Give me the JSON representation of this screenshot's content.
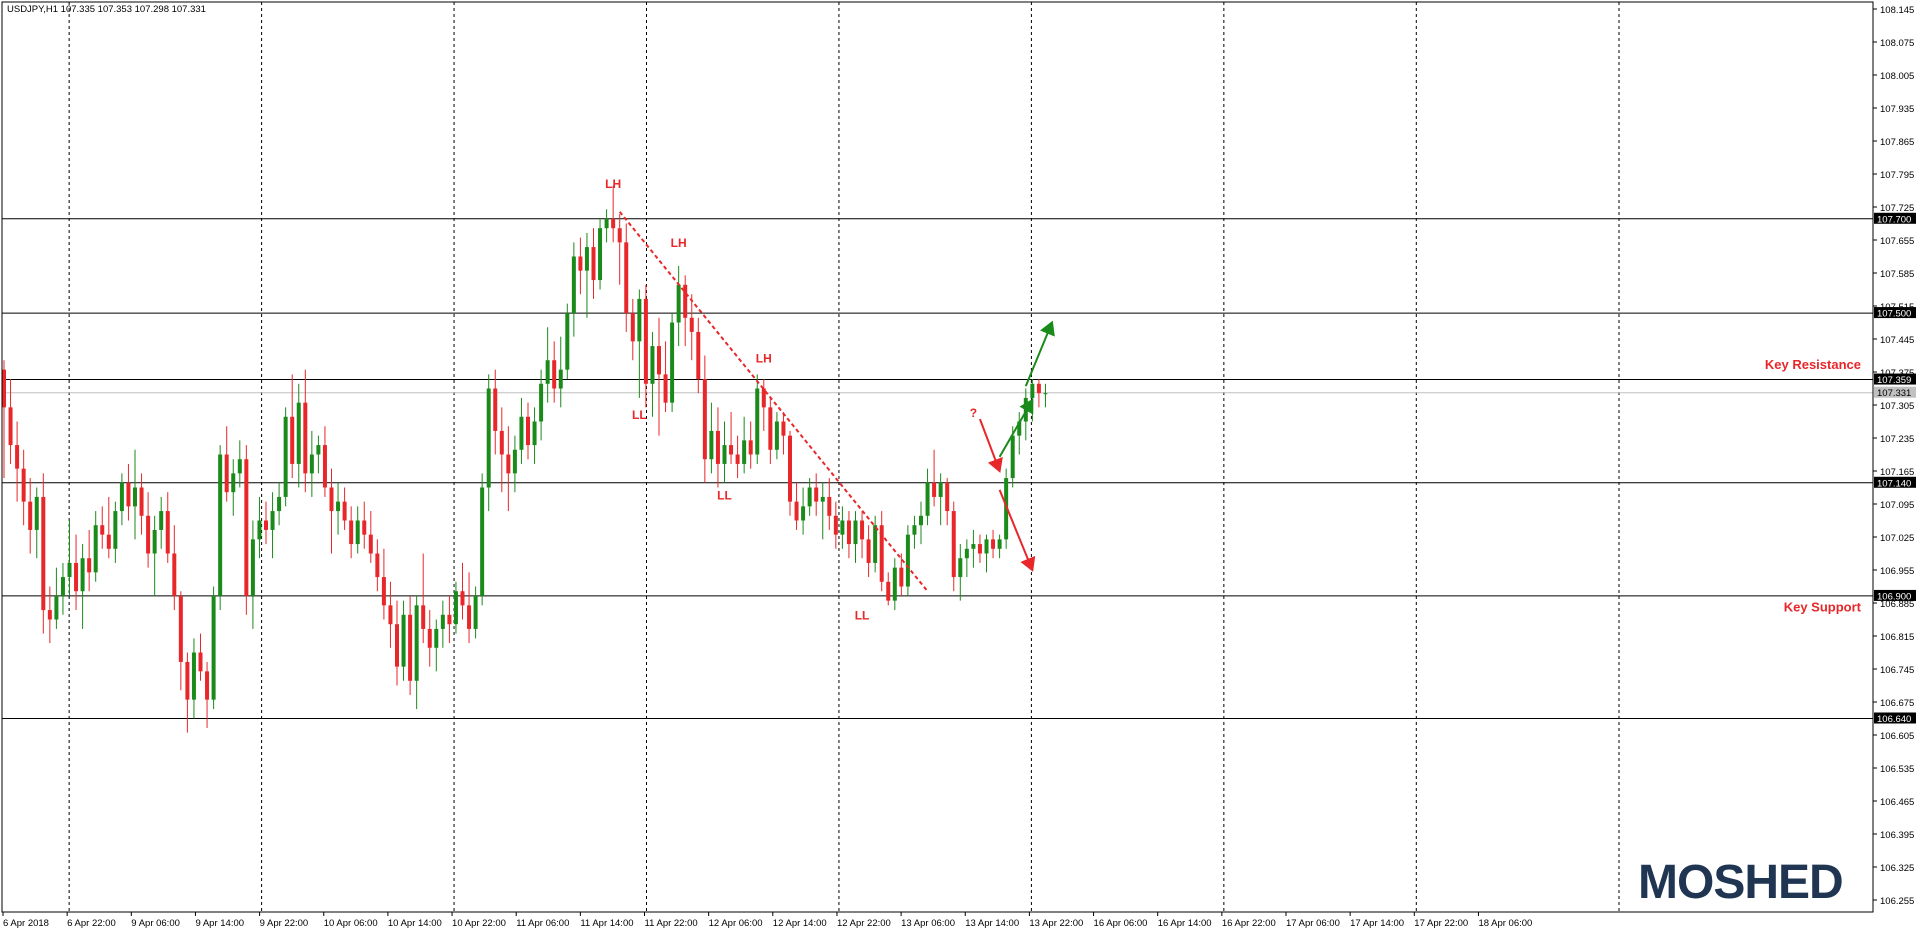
{
  "chart_data": {
    "type": "candlestick",
    "symbol_header": "USDJPY,H1  107.335 107.353 107.298 107.331",
    "ylim": [
      106.255,
      108.145
    ],
    "y_ticks": [
      "108.145",
      "108.075",
      "108.005",
      "107.935",
      "107.865",
      "107.795",
      "107.725",
      "107.655",
      "107.585",
      "107.515",
      "107.445",
      "107.375",
      "107.305",
      "107.235",
      "107.165",
      "107.095",
      "107.025",
      "106.955",
      "106.885",
      "106.815",
      "106.745",
      "106.675",
      "106.605",
      "106.535",
      "106.465",
      "106.395",
      "106.325",
      "106.255"
    ],
    "x_ticks": [
      "6 Apr 2018",
      "6 Apr 22:00",
      "9 Apr 06:00",
      "9 Apr 14:00",
      "9 Apr 22:00",
      "10 Apr 06:00",
      "10 Apr 14:00",
      "10 Apr 22:00",
      "11 Apr 06:00",
      "11 Apr 14:00",
      "11 Apr 22:00",
      "12 Apr 06:00",
      "12 Apr 14:00",
      "12 Apr 22:00",
      "13 Apr 06:00",
      "13 Apr 14:00",
      "13 Apr 22:00",
      "16 Apr 06:00",
      "16 Apr 14:00",
      "16 Apr 22:00",
      "17 Apr 06:00",
      "17 Apr 14:00",
      "17 Apr 22:00",
      "18 Apr 06:00"
    ],
    "vertical_grid_after_ticks": [
      1,
      4,
      7,
      10,
      13,
      16,
      19,
      22
    ],
    "bull_color": "#1a8a1a",
    "bear_color": "#e8272a",
    "candles": [
      [
        107.38,
        107.4,
        107.15,
        107.3
      ],
      [
        107.3,
        107.36,
        107.18,
        107.22
      ],
      [
        107.22,
        107.27,
        107.1,
        107.17
      ],
      [
        107.17,
        107.21,
        107.05,
        107.1
      ],
      [
        107.1,
        107.15,
        106.99,
        107.04
      ],
      [
        107.04,
        107.13,
        106.98,
        107.11
      ],
      [
        107.11,
        107.16,
        106.82,
        106.87
      ],
      [
        106.87,
        106.92,
        106.8,
        106.85
      ],
      [
        106.85,
        106.96,
        106.83,
        106.9
      ],
      [
        106.9,
        106.97,
        106.86,
        106.94
      ],
      [
        106.94,
        107.06,
        106.9,
        106.97
      ],
      [
        106.97,
        107.03,
        106.87,
        106.91
      ],
      [
        106.91,
        107.01,
        106.83,
        106.98
      ],
      [
        106.98,
        107.04,
        106.91,
        106.95
      ],
      [
        106.95,
        107.08,
        106.93,
        107.05
      ],
      [
        107.05,
        107.09,
        107.0,
        107.03
      ],
      [
        107.03,
        107.11,
        106.98,
        107.0
      ],
      [
        107.0,
        107.1,
        106.97,
        107.08
      ],
      [
        107.08,
        107.16,
        107.05,
        107.14
      ],
      [
        107.14,
        107.18,
        107.06,
        107.09
      ],
      [
        107.09,
        107.21,
        107.02,
        107.13
      ],
      [
        107.13,
        107.16,
        107.03,
        107.07
      ],
      [
        107.07,
        107.12,
        106.96,
        106.99
      ],
      [
        106.99,
        107.07,
        106.9,
        107.04
      ],
      [
        107.04,
        107.11,
        107.0,
        107.08
      ],
      [
        107.08,
        107.12,
        106.97,
        106.99
      ],
      [
        106.99,
        107.05,
        106.87,
        106.9
      ],
      [
        106.9,
        106.91,
        106.7,
        106.76
      ],
      [
        106.76,
        106.78,
        106.61,
        106.68
      ],
      [
        106.68,
        106.81,
        106.64,
        106.78
      ],
      [
        106.78,
        106.82,
        106.72,
        106.74
      ],
      [
        106.74,
        106.76,
        106.62,
        106.68
      ],
      [
        106.68,
        106.92,
        106.66,
        106.9
      ],
      [
        106.9,
        107.22,
        106.87,
        107.2
      ],
      [
        107.2,
        107.26,
        107.1,
        107.12
      ],
      [
        107.12,
        107.19,
        107.07,
        107.16
      ],
      [
        107.16,
        107.23,
        107.13,
        107.19
      ],
      [
        107.19,
        107.22,
        106.86,
        106.9
      ],
      [
        106.9,
        107.06,
        106.83,
        107.02
      ],
      [
        107.02,
        107.11,
        106.98,
        107.06
      ],
      [
        107.06,
        107.1,
        107.01,
        107.04
      ],
      [
        107.04,
        107.12,
        106.98,
        107.08
      ],
      [
        107.08,
        107.14,
        107.05,
        107.11
      ],
      [
        107.11,
        107.3,
        107.09,
        107.28
      ],
      [
        107.28,
        107.37,
        107.15,
        107.18
      ],
      [
        107.18,
        107.35,
        107.13,
        107.31
      ],
      [
        107.31,
        107.38,
        107.12,
        107.16
      ],
      [
        107.16,
        107.25,
        107.11,
        107.2
      ],
      [
        107.2,
        107.24,
        107.16,
        107.22
      ],
      [
        107.22,
        107.26,
        107.11,
        107.13
      ],
      [
        107.13,
        107.17,
        106.99,
        107.08
      ],
      [
        107.08,
        107.14,
        107.03,
        107.1
      ],
      [
        107.1,
        107.13,
        107.04,
        107.06
      ],
      [
        107.06,
        107.09,
        106.98,
        107.01
      ],
      [
        107.01,
        107.09,
        106.99,
        107.06
      ],
      [
        107.06,
        107.1,
        107.0,
        107.03
      ],
      [
        107.03,
        107.08,
        106.97,
        106.99
      ],
      [
        106.99,
        107.02,
        106.91,
        106.94
      ],
      [
        106.94,
        107.0,
        106.85,
        106.88
      ],
      [
        106.88,
        106.93,
        106.79,
        106.84
      ],
      [
        106.84,
        106.89,
        106.71,
        106.75
      ],
      [
        106.75,
        106.89,
        106.72,
        106.86
      ],
      [
        106.86,
        106.9,
        106.69,
        106.72
      ],
      [
        106.72,
        106.9,
        106.66,
        106.88
      ],
      [
        106.88,
        106.99,
        106.8,
        106.83
      ],
      [
        106.83,
        106.87,
        106.75,
        106.79
      ],
      [
        106.79,
        106.85,
        106.74,
        106.83
      ],
      [
        106.83,
        106.89,
        106.79,
        106.86
      ],
      [
        106.86,
        106.9,
        106.8,
        106.84
      ],
      [
        106.84,
        106.93,
        106.82,
        106.91
      ],
      [
        106.91,
        106.97,
        106.85,
        106.88
      ],
      [
        106.88,
        106.95,
        106.8,
        106.83
      ],
      [
        106.83,
        106.92,
        106.81,
        106.9
      ],
      [
        106.9,
        107.16,
        106.88,
        107.13
      ],
      [
        107.13,
        107.37,
        107.08,
        107.34
      ],
      [
        107.34,
        107.38,
        107.2,
        107.25
      ],
      [
        107.25,
        107.3,
        107.12,
        107.2
      ],
      [
        107.2,
        107.26,
        107.08,
        107.16
      ],
      [
        107.16,
        107.24,
        107.12,
        107.21
      ],
      [
        107.21,
        107.32,
        107.18,
        107.28
      ],
      [
        107.28,
        107.31,
        107.19,
        107.22
      ],
      [
        107.22,
        107.3,
        107.18,
        107.27
      ],
      [
        107.27,
        107.38,
        107.23,
        107.35
      ],
      [
        107.35,
        107.47,
        107.31,
        107.4
      ],
      [
        107.4,
        107.44,
        107.31,
        107.34
      ],
      [
        107.34,
        107.45,
        107.3,
        107.38
      ],
      [
        107.38,
        107.52,
        107.36,
        107.5
      ],
      [
        107.5,
        107.65,
        107.45,
        107.62
      ],
      [
        107.62,
        107.66,
        107.54,
        107.59
      ],
      [
        107.59,
        107.67,
        107.49,
        107.64
      ],
      [
        107.64,
        107.68,
        107.53,
        107.57
      ],
      [
        107.57,
        107.7,
        107.55,
        107.68
      ],
      [
        107.68,
        107.72,
        107.65,
        107.7
      ],
      [
        107.7,
        107.77,
        107.65,
        107.68
      ],
      [
        107.68,
        107.71,
        107.56,
        107.65
      ],
      [
        107.65,
        107.69,
        107.46,
        107.5
      ],
      [
        107.5,
        107.53,
        107.4,
        107.44
      ],
      [
        107.44,
        107.55,
        107.32,
        107.53
      ],
      [
        107.53,
        107.56,
        107.3,
        107.35
      ],
      [
        107.35,
        107.46,
        107.28,
        107.43
      ],
      [
        107.43,
        107.49,
        107.24,
        107.37
      ],
      [
        107.37,
        107.44,
        107.29,
        107.31
      ],
      [
        107.31,
        107.5,
        107.29,
        107.48
      ],
      [
        107.48,
        107.6,
        107.43,
        107.56
      ],
      [
        107.56,
        107.58,
        107.43,
        107.49
      ],
      [
        107.49,
        107.54,
        107.4,
        107.46
      ],
      [
        107.46,
        107.49,
        107.33,
        107.36
      ],
      [
        107.36,
        107.41,
        107.14,
        107.19
      ],
      [
        107.19,
        107.31,
        107.16,
        107.25
      ],
      [
        107.25,
        107.3,
        107.13,
        107.18
      ],
      [
        107.18,
        107.27,
        107.14,
        107.22
      ],
      [
        107.22,
        107.29,
        107.18,
        107.2
      ],
      [
        107.2,
        107.24,
        107.15,
        107.18
      ],
      [
        107.18,
        107.28,
        107.16,
        107.23
      ],
      [
        107.23,
        107.27,
        107.17,
        107.2
      ],
      [
        107.2,
        107.37,
        107.18,
        107.34
      ],
      [
        107.34,
        107.36,
        107.25,
        107.3
      ],
      [
        107.3,
        107.32,
        107.18,
        107.21
      ],
      [
        107.21,
        107.29,
        107.19,
        107.27
      ],
      [
        107.27,
        107.29,
        107.2,
        107.24
      ],
      [
        107.24,
        107.25,
        107.07,
        107.1
      ],
      [
        107.1,
        107.14,
        107.04,
        107.06
      ],
      [
        107.06,
        107.13,
        107.03,
        107.09
      ],
      [
        107.09,
        107.15,
        107.07,
        107.13
      ],
      [
        107.13,
        107.16,
        107.07,
        107.1
      ],
      [
        107.1,
        107.14,
        107.02,
        107.11
      ],
      [
        107.11,
        107.15,
        107.04,
        107.07
      ],
      [
        107.07,
        107.1,
        107.0,
        107.03
      ],
      [
        107.03,
        107.09,
        107.0,
        107.06
      ],
      [
        107.06,
        107.08,
        106.98,
        107.01
      ],
      [
        107.01,
        107.08,
        106.97,
        107.06
      ],
      [
        107.06,
        107.08,
        106.98,
        107.02
      ],
      [
        107.02,
        107.05,
        106.94,
        106.97
      ],
      [
        106.97,
        107.07,
        106.95,
        107.05
      ],
      [
        107.05,
        107.08,
        106.91,
        106.93
      ],
      [
        106.93,
        106.95,
        106.88,
        106.89
      ],
      [
        106.89,
        106.98,
        106.87,
        106.96
      ],
      [
        106.96,
        106.99,
        106.9,
        106.92
      ],
      [
        106.92,
        107.05,
        106.9,
        107.03
      ],
      [
        107.03,
        107.07,
        107.0,
        107.05
      ],
      [
        107.05,
        107.1,
        107.01,
        107.07
      ],
      [
        107.07,
        107.17,
        107.05,
        107.14
      ],
      [
        107.14,
        107.21,
        107.09,
        107.11
      ],
      [
        107.11,
        107.16,
        107.05,
        107.14
      ],
      [
        107.14,
        107.15,
        107.05,
        107.08
      ],
      [
        107.08,
        107.1,
        106.91,
        106.94
      ],
      [
        106.94,
        107.01,
        106.89,
        106.98
      ],
      [
        106.98,
        107.02,
        106.94,
        107.0
      ],
      [
        107.0,
        107.04,
        106.96,
        107.01
      ],
      [
        107.01,
        107.03,
        106.97,
        106.99
      ],
      [
        106.99,
        107.03,
        106.95,
        107.02
      ],
      [
        107.02,
        107.04,
        106.98,
        107.0
      ],
      [
        107.0,
        107.03,
        106.98,
        107.02
      ],
      [
        107.02,
        107.17,
        107.0,
        107.15
      ],
      [
        107.15,
        107.26,
        107.13,
        107.24
      ],
      [
        107.24,
        107.29,
        107.2,
        107.27
      ],
      [
        107.27,
        107.34,
        107.23,
        107.32
      ],
      [
        107.32,
        107.36,
        107.27,
        107.35
      ],
      [
        107.35,
        107.36,
        107.3,
        107.33
      ],
      [
        107.33,
        107.35,
        107.3,
        107.33
      ]
    ],
    "horizontal_levels": [
      {
        "price": 107.7,
        "label": "107.700",
        "color": "#000000",
        "text_color": "#ffffff"
      },
      {
        "price": 107.5,
        "label": "107.500",
        "color": "#000000",
        "text_color": "#ffffff"
      },
      {
        "price": 107.359,
        "label": "107.359",
        "color": "#000000",
        "text_color": "#ffffff"
      },
      {
        "price": 107.331,
        "label": "107.331",
        "color": "#c0c0c0",
        "text_color": "#000000"
      },
      {
        "price": 107.14,
        "label": "107.140",
        "color": "#000000",
        "text_color": "#ffffff"
      },
      {
        "price": 106.9,
        "label": "106.900",
        "color": "#000000",
        "text_color": "#ffffff"
      },
      {
        "price": 106.64,
        "label": "106.640",
        "color": "#000000",
        "text_color": "#ffffff"
      }
    ],
    "annotations": [
      {
        "text": "LH",
        "candle": 93,
        "price": 107.765
      },
      {
        "text": "LH",
        "candle": 103,
        "price": 107.64
      },
      {
        "text": "LL",
        "candle": 97,
        "price": 107.275
      },
      {
        "text": "LH",
        "candle": 116,
        "price": 107.395
      },
      {
        "text": "LL",
        "candle": 110,
        "price": 107.105
      },
      {
        "text": "LL",
        "candle": 131,
        "price": 106.85
      },
      {
        "text": "?",
        "candle": 148,
        "price": 107.28
      }
    ],
    "trendline": {
      "from": {
        "candle": 94,
        "price": 107.715
      },
      "to": {
        "candle": 141,
        "price": 106.91
      }
    },
    "key_labels": [
      {
        "text": "Key Resistance",
        "price": 107.39
      },
      {
        "text": "Key Support",
        "price": 106.875
      }
    ],
    "scenario_arrows": {
      "green": [
        {
          "from_candle": 152,
          "from_price": 107.195,
          "to_candle": 157,
          "to_price": 107.315
        },
        {
          "from_candle": 156,
          "from_price": 107.345,
          "to_candle": 160,
          "to_price": 107.48
        }
      ],
      "red": [
        {
          "from_candle": 149,
          "from_price": 107.275,
          "to_candle": 152,
          "to_price": 107.165
        },
        {
          "from_candle": 152,
          "from_price": 107.125,
          "to_candle": 157,
          "to_price": 106.955
        }
      ]
    }
  },
  "logo_text": "MOSHED"
}
